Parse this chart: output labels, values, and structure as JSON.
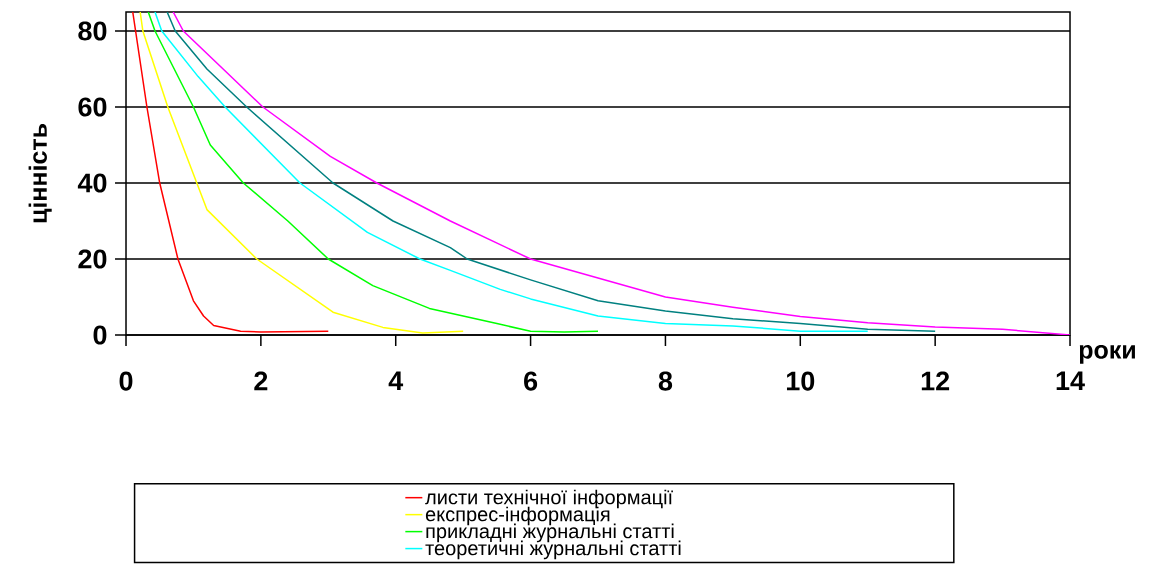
{
  "chart_data": {
    "type": "line",
    "xlabel": "роки",
    "ylabel": "цінність",
    "xlim": [
      0,
      14
    ],
    "ylim": [
      0,
      85
    ],
    "xticks": [
      0,
      2,
      4,
      6,
      8,
      10,
      12,
      14
    ],
    "yticks": [
      0,
      20,
      40,
      60,
      80
    ],
    "grid": "y",
    "legend": "bottom",
    "marker": "none",
    "line_style": "solid",
    "series": [
      {
        "name": "листи технічної інформації",
        "color": "#ff0000",
        "x": [
          0.1,
          0.31,
          0.5,
          0.77,
          1.0,
          1.15,
          1.3,
          1.7,
          2,
          3
        ],
        "values": [
          85,
          60,
          40,
          20,
          9,
          5,
          2.5,
          1,
          0.8,
          1
        ]
      },
      {
        "name": "експрес-інформація",
        "color": "#ffff00",
        "x": [
          0.21,
          0.25,
          0.62,
          1.05,
          1.2,
          1.94,
          3.07,
          3.81,
          4.4,
          5.0
        ],
        "values": [
          85,
          80,
          60,
          40,
          33,
          20,
          6,
          2,
          0.5,
          1
        ]
      },
      {
        "name": "прикладні журнальні статті",
        "color": "#00ff00",
        "x": [
          0.33,
          0.43,
          1.0,
          1.25,
          1.74,
          2.4,
          3.0,
          3.66,
          4.5,
          5.0,
          5.5,
          6,
          6.5,
          7
        ],
        "values": [
          85,
          80,
          60,
          50,
          40,
          30,
          20,
          13,
          7,
          5,
          3,
          1,
          0.8,
          1
        ]
      },
      {
        "name": "теоретичні журнальні статті",
        "color": "#00ffff",
        "x": [
          0.43,
          0.53,
          1.07,
          1.47,
          2.58,
          3.58,
          4.36,
          4.81,
          5.55,
          6,
          7,
          8,
          9,
          10,
          11
        ],
        "values": [
          85,
          80,
          68,
          60,
          40,
          27,
          20,
          17,
          12,
          9.5,
          5,
          3,
          2.4,
          1,
          1
        ]
      },
      {
        "color": "#008080",
        "x": [
          0.61,
          0.73,
          1.2,
          1.79,
          3.07,
          3.96,
          4.81,
          5.06,
          6,
          7,
          8,
          9,
          10,
          11,
          12
        ],
        "values": [
          85,
          80,
          70,
          60,
          40,
          30,
          23,
          20,
          14.5,
          9,
          6.3,
          4.3,
          3,
          1.5,
          1
        ]
      },
      {
        "color": "#ff00ff",
        "x": [
          0.7,
          0.85,
          1.44,
          2.03,
          3.03,
          3.72,
          4.81,
          6,
          7,
          8,
          9,
          10,
          11,
          12,
          13,
          14
        ],
        "values": [
          85,
          80,
          70,
          60,
          47,
          40,
          30,
          20,
          15,
          10,
          7.3,
          4.9,
          3.2,
          2.1,
          1.5,
          0
        ]
      }
    ]
  }
}
